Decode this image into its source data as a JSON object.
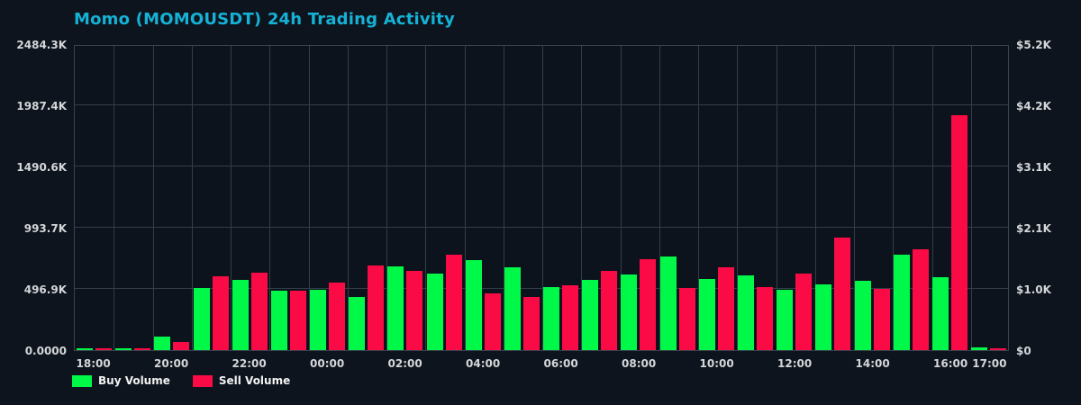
{
  "title": "Momo (MOMOUSDT) 24h Trading Activity",
  "colors": {
    "background": "#0d141d",
    "plot_background": "#0c131c",
    "grid": "#333d49",
    "title": "#15b2d6",
    "tick_text": "#d4d6d9",
    "legend_text": "#f2f2f2",
    "buy": "#00f948",
    "sell": "#fb0b45"
  },
  "legend": {
    "items": [
      {
        "label": "Buy Volume",
        "color": "#00f948"
      },
      {
        "label": "Sell Volume",
        "color": "#fb0b45"
      }
    ]
  },
  "chart_data": {
    "type": "bar",
    "title": "Momo (MOMOUSDT) 24h Trading Activity",
    "xlabel": "",
    "ylabel_left": "",
    "ylabel_right": "",
    "grid": true,
    "legend_position": "bottom-left",
    "ylim": [
      0,
      2484300
    ],
    "categories": [
      "18:00",
      "19:00",
      "20:00",
      "21:00",
      "22:00",
      "23:00",
      "00:00",
      "01:00",
      "02:00",
      "03:00",
      "04:00",
      "05:00",
      "06:00",
      "07:00",
      "08:00",
      "09:00",
      "10:00",
      "11:00",
      "12:00",
      "13:00",
      "14:00",
      "15:00",
      "16:00",
      "17:00"
    ],
    "series": [
      {
        "name": "Buy Volume",
        "color": "#00f948",
        "values": [
          12000,
          12000,
          112000,
          506000,
          572000,
          480000,
          492000,
          429000,
          677000,
          621000,
          731000,
          672000,
          511000,
          568000,
          614000,
          762000,
          580000,
          609000,
          487000,
          533000,
          565000,
          772000,
          590000,
          24000
        ]
      },
      {
        "name": "Sell Volume",
        "color": "#fb0b45",
        "values": [
          8000,
          8000,
          66000,
          600000,
          628000,
          485000,
          548000,
          687000,
          641000,
          772000,
          458000,
          431000,
          526000,
          641000,
          736000,
          507000,
          675000,
          514000,
          621000,
          916000,
          497000,
          816000,
          1905000,
          12000
        ]
      }
    ],
    "y_ticks_left": [
      "0.0000",
      "496.9K",
      "993.7K",
      "1490.6K",
      "1987.4K",
      "2484.3K"
    ],
    "y_ticks_right": [
      "$0",
      "$1.0K",
      "$2.1K",
      "$3.1K",
      "$4.2K",
      "$5.2K"
    ],
    "x_ticks_shown": [
      {
        "label": "18:00",
        "slot": 0
      },
      {
        "label": "20:00",
        "slot": 2
      },
      {
        "label": "22:00",
        "slot": 4
      },
      {
        "label": "00:00",
        "slot": 6
      },
      {
        "label": "02:00",
        "slot": 8
      },
      {
        "label": "04:00",
        "slot": 10
      },
      {
        "label": "06:00",
        "slot": 12
      },
      {
        "label": "08:00",
        "slot": 14
      },
      {
        "label": "10:00",
        "slot": 16
      },
      {
        "label": "12:00",
        "slot": 18
      },
      {
        "label": "14:00",
        "slot": 20
      },
      {
        "label": "16:00",
        "slot": 22
      },
      {
        "label": "17:00",
        "slot": 23
      }
    ]
  }
}
